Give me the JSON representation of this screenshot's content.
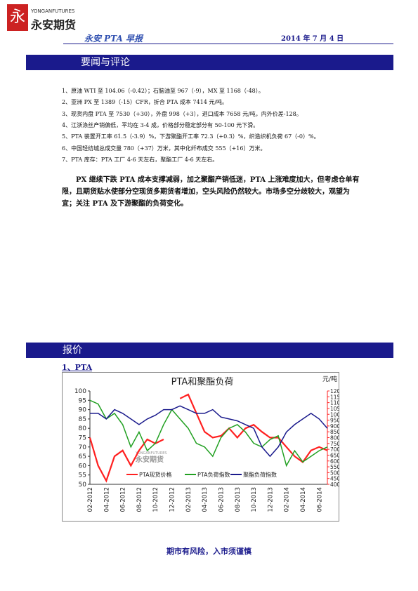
{
  "header": {
    "logo_en": "YONGANFUTURES",
    "logo_cn": "永安期货",
    "report": "永安 PTA 早报",
    "date": "2014 年 7 月 4 日"
  },
  "section1": {
    "title": "要闻与评论",
    "items": [
      "1、原油 WTI 至 104.06（-0.42）；石脑油至 967（-9），MX 至 1168（-48）。",
      "2、亚洲 PX 至 1389（-15）CFR，折合 PTA 成本 7414 元/吨。",
      "3、现货内盘 PTA 至 7530（+30），外盘 998（+3），进口成本 7658 元/吨，内外价差-128。",
      "4、江浙涤丝产销偏低，平均在 3-4 成，价格部分稳定部分有 50-100 元下滑。",
      "5、PTA 装置开工率 61.5（-3.9）%，下游聚酯开工率 72.3（+0.3）%，织造织机负荷 67（-0）%。",
      "6、中国轻纺城总成交量 780（+37）万米，其中化纤布成交 555（+16）万米。",
      "7、PTA 库存：PTA 工厂 4-6 天左右，聚酯工厂 4-6 天左右。"
    ],
    "comment": "PX 继续下跌 PTA 成本支撑减弱，加之聚酯产销低迷，PTA 上涨难度加大，但考虑仓单有限，且期货贴水使部分空现货多期货者增加，空头风险仍然较大。市场多空分歧较大，观望为宜；关注 PTA 及下游聚酯的负荷变化。"
  },
  "section2": {
    "title": "报价",
    "subtitle": "1、PTA"
  },
  "chart_data": {
    "type": "line",
    "title": "PTA和聚酯负荷",
    "y2_unit": "元/吨",
    "watermark": "永安期货",
    "watermark_en": "YONGANFUTURES",
    "categories": [
      "02-2012",
      null,
      "04-2012",
      null,
      "06-2012",
      null,
      "08-2012",
      null,
      "10-2012",
      null,
      "12-2012",
      null,
      "02-2013",
      null,
      "04-2013",
      null,
      "06-2013",
      null,
      "08-2013",
      null,
      "10-2013",
      null,
      "12-2013",
      null,
      "02-2014",
      null,
      "04-2014",
      null,
      "06-2014",
      null
    ],
    "ylim": [
      50,
      100
    ],
    "yticks": [
      50,
      55,
      60,
      65,
      70,
      75,
      80,
      85,
      90,
      95,
      100
    ],
    "y2lim": [
      4000,
      12000
    ],
    "y2ticks": [
      4000,
      4500,
      5000,
      5500,
      6000,
      6500,
      7000,
      7500,
      8000,
      8500,
      9000,
      9500,
      10000,
      10500,
      11000,
      11500,
      12000
    ],
    "series": [
      {
        "name": "PTA现货价格",
        "color": "#ff2020",
        "axis": "y2",
        "values": [
          8000,
          5600,
          4300,
          6400,
          6900,
          5600,
          6900,
          7850,
          7500,
          7850,
          null,
          11350,
          11700,
          10100,
          8500,
          8000,
          8150,
          8800,
          8000,
          8800,
          9100,
          8500,
          8000,
          8000,
          7200,
          6400,
          5900,
          6900,
          7200,
          6900
        ]
      },
      {
        "name": "PTA负荷指数",
        "color": "#22a022",
        "values": [
          95,
          93,
          85,
          88,
          82,
          70,
          78,
          68,
          72,
          82,
          90,
          85,
          80,
          72,
          70,
          65,
          75,
          80,
          82,
          78,
          72,
          70,
          74,
          76,
          60,
          68,
          62,
          65,
          68,
          70
        ]
      },
      {
        "name": "聚酯负荷指数",
        "color": "#1a1a8c",
        "values": [
          88,
          88,
          85,
          90,
          88,
          85,
          82,
          85,
          87,
          90,
          90,
          92,
          90,
          88,
          88,
          90,
          86,
          85,
          84,
          82,
          80,
          70,
          65,
          70,
          78,
          82,
          85,
          88,
          85,
          80
        ]
      }
    ]
  },
  "footer": "期市有风险，入市须谨慎"
}
